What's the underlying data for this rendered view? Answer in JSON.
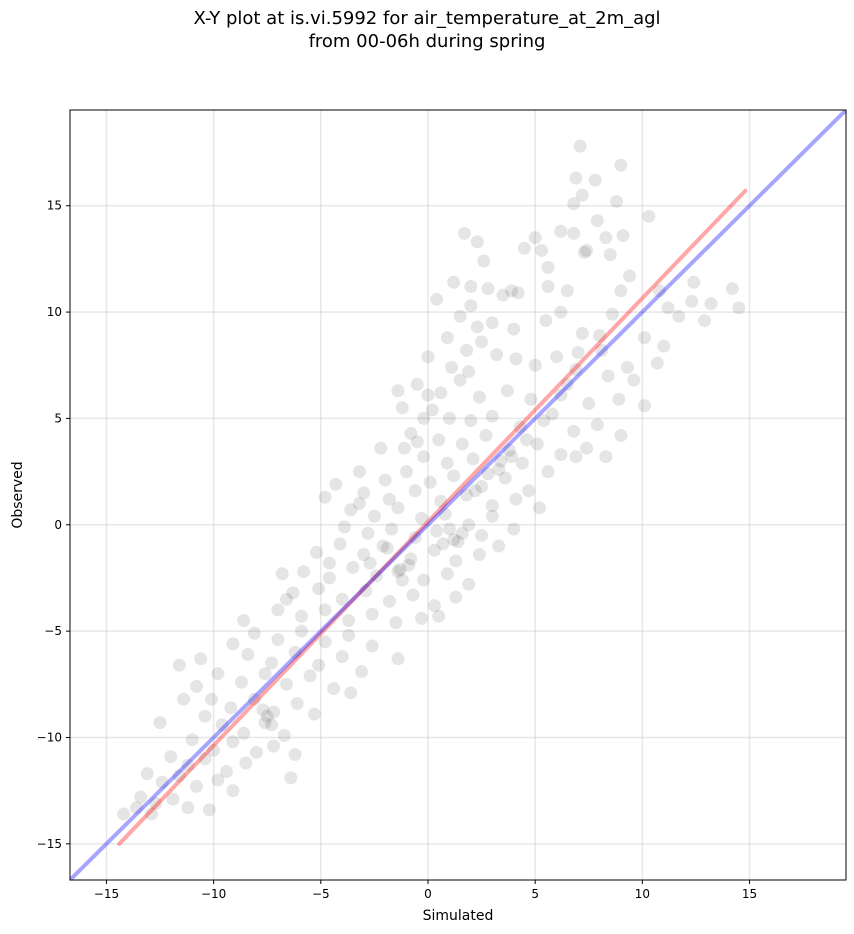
{
  "title": {
    "line1": "X-Y plot at is.vi.5992 for air_temperature_at_2m_agl",
    "line2": "from 00-06h during spring"
  },
  "chart_data": {
    "type": "scatter",
    "xlabel": "Simulated",
    "ylabel": "Observed",
    "xlim": [
      -16.7,
      19.5
    ],
    "ylim": [
      -16.7,
      19.5
    ],
    "xticks": [
      -15,
      -10,
      -5,
      0,
      5,
      10,
      15
    ],
    "yticks": [
      -15,
      -10,
      -5,
      0,
      5,
      10,
      15
    ],
    "xtick_labels": [
      "−15",
      "−10",
      "−5",
      "0",
      "5",
      "10",
      "15"
    ],
    "ytick_labels": [
      "−15",
      "−10",
      "−5",
      "0",
      "5",
      "10",
      "15"
    ],
    "grid": true,
    "point_color": "#000000",
    "point_opacity": 0.1,
    "fit_line": {
      "color": "#ff0000",
      "opacity": 0.35,
      "x": [
        -14.4,
        14.8
      ],
      "y": [
        -15.0,
        15.7
      ]
    },
    "identity_line": {
      "color": "#0000ff",
      "opacity": 0.35,
      "x": [
        -16.7,
        19.5
      ],
      "y": [
        -16.7,
        19.5
      ]
    },
    "points": [
      {
        "x": 7.1,
        "y": 17.8
      },
      {
        "x": 9.0,
        "y": 16.9
      },
      {
        "x": 6.9,
        "y": 16.3
      },
      {
        "x": 7.8,
        "y": 16.2
      },
      {
        "x": 7.2,
        "y": 15.5
      },
      {
        "x": 6.8,
        "y": 15.1
      },
      {
        "x": 8.8,
        "y": 15.2
      },
      {
        "x": 10.3,
        "y": 14.5
      },
      {
        "x": 7.9,
        "y": 14.3
      },
      {
        "x": 1.7,
        "y": 13.7
      },
      {
        "x": 5.0,
        "y": 13.5
      },
      {
        "x": 2.3,
        "y": 13.3
      },
      {
        "x": 6.2,
        "y": 13.8
      },
      {
        "x": 6.8,
        "y": 13.7
      },
      {
        "x": 9.1,
        "y": 13.6
      },
      {
        "x": 8.3,
        "y": 13.5
      },
      {
        "x": 4.5,
        "y": 13.0
      },
      {
        "x": 5.3,
        "y": 12.9
      },
      {
        "x": 7.3,
        "y": 12.8
      },
      {
        "x": 8.5,
        "y": 12.7
      },
      {
        "x": 2.0,
        "y": 11.2
      },
      {
        "x": 1.2,
        "y": 11.4
      },
      {
        "x": 2.8,
        "y": 11.1
      },
      {
        "x": 3.5,
        "y": 10.8
      },
      {
        "x": 4.2,
        "y": 10.9
      },
      {
        "x": 5.6,
        "y": 11.2
      },
      {
        "x": 6.5,
        "y": 11.0
      },
      {
        "x": 9.0,
        "y": 11.0
      },
      {
        "x": 10.8,
        "y": 11.0
      },
      {
        "x": 12.4,
        "y": 11.4
      },
      {
        "x": 14.2,
        "y": 11.1
      },
      {
        "x": 14.5,
        "y": 10.2
      },
      {
        "x": 13.2,
        "y": 10.4
      },
      {
        "x": 12.3,
        "y": 10.5
      },
      {
        "x": 11.2,
        "y": 10.2
      },
      {
        "x": 12.9,
        "y": 9.6
      },
      {
        "x": 0.4,
        "y": 10.6
      },
      {
        "x": 2.0,
        "y": 10.3
      },
      {
        "x": 1.5,
        "y": 9.8
      },
      {
        "x": 3.0,
        "y": 9.5
      },
      {
        "x": 4.0,
        "y": 9.2
      },
      {
        "x": 5.5,
        "y": 9.6
      },
      {
        "x": 7.2,
        "y": 9.0
      },
      {
        "x": 8.0,
        "y": 8.9
      },
      {
        "x": 10.1,
        "y": 8.8
      },
      {
        "x": 11.0,
        "y": 8.4
      },
      {
        "x": 10.7,
        "y": 7.6
      },
      {
        "x": 9.3,
        "y": 7.4
      },
      {
        "x": 0.9,
        "y": 8.8
      },
      {
        "x": 1.8,
        "y": 8.2
      },
      {
        "x": 2.5,
        "y": 8.6
      },
      {
        "x": 3.2,
        "y": 8.0
      },
      {
        "x": 4.1,
        "y": 7.8
      },
      {
        "x": 5.0,
        "y": 7.5
      },
      {
        "x": 6.0,
        "y": 7.9
      },
      {
        "x": 6.9,
        "y": 7.3
      },
      {
        "x": 8.4,
        "y": 7.0
      },
      {
        "x": 9.6,
        "y": 6.8
      },
      {
        "x": 0.0,
        "y": 7.9
      },
      {
        "x": 1.1,
        "y": 7.4
      },
      {
        "x": -0.5,
        "y": 6.6
      },
      {
        "x": 0.6,
        "y": 6.2
      },
      {
        "x": 1.5,
        "y": 6.8
      },
      {
        "x": 2.4,
        "y": 6.0
      },
      {
        "x": 3.7,
        "y": 6.3
      },
      {
        "x": 4.8,
        "y": 5.9
      },
      {
        "x": 6.2,
        "y": 6.1
      },
      {
        "x": 7.5,
        "y": 5.7
      },
      {
        "x": 8.9,
        "y": 5.9
      },
      {
        "x": 10.1,
        "y": 5.6
      },
      {
        "x": -1.4,
        "y": 6.3
      },
      {
        "x": -1.2,
        "y": 5.5
      },
      {
        "x": 0.2,
        "y": 5.4
      },
      {
        "x": 1.0,
        "y": 5.0
      },
      {
        "x": 2.0,
        "y": 4.9
      },
      {
        "x": 3.0,
        "y": 5.1
      },
      {
        "x": 4.3,
        "y": 4.6
      },
      {
        "x": 5.4,
        "y": 4.9
      },
      {
        "x": 6.8,
        "y": 4.4
      },
      {
        "x": 7.9,
        "y": 4.7
      },
      {
        "x": 9.0,
        "y": 4.2
      },
      {
        "x": -0.8,
        "y": 4.3
      },
      {
        "x": 0.5,
        "y": 4.0
      },
      {
        "x": 1.6,
        "y": 3.8
      },
      {
        "x": 2.7,
        "y": 4.2
      },
      {
        "x": 3.8,
        "y": 3.5
      },
      {
        "x": 5.1,
        "y": 3.8
      },
      {
        "x": 6.2,
        "y": 3.3
      },
      {
        "x": 7.4,
        "y": 3.6
      },
      {
        "x": 8.3,
        "y": 3.2
      },
      {
        "x": -2.2,
        "y": 3.6
      },
      {
        "x": -1.1,
        "y": 3.6
      },
      {
        "x": -0.2,
        "y": 3.2
      },
      {
        "x": 0.9,
        "y": 2.9
      },
      {
        "x": 2.1,
        "y": 3.1
      },
      {
        "x": 3.3,
        "y": 2.6
      },
      {
        "x": 4.4,
        "y": 2.9
      },
      {
        "x": 5.6,
        "y": 2.5
      },
      {
        "x": 6.9,
        "y": 3.2
      },
      {
        "x": -3.2,
        "y": 2.5
      },
      {
        "x": -2.0,
        "y": 2.1
      },
      {
        "x": -1.0,
        "y": 2.5
      },
      {
        "x": 0.1,
        "y": 2.0
      },
      {
        "x": 1.2,
        "y": 2.3
      },
      {
        "x": 2.5,
        "y": 1.8
      },
      {
        "x": 3.6,
        "y": 2.2
      },
      {
        "x": 4.7,
        "y": 1.6
      },
      {
        "x": -4.3,
        "y": 1.9
      },
      {
        "x": -3.0,
        "y": 1.5
      },
      {
        "x": -1.8,
        "y": 1.2
      },
      {
        "x": -0.6,
        "y": 1.6
      },
      {
        "x": 0.6,
        "y": 1.1
      },
      {
        "x": 1.8,
        "y": 1.4
      },
      {
        "x": 3.0,
        "y": 0.9
      },
      {
        "x": 4.1,
        "y": 1.2
      },
      {
        "x": 5.2,
        "y": 0.8
      },
      {
        "x": -4.8,
        "y": 1.3
      },
      {
        "x": -3.6,
        "y": 0.7
      },
      {
        "x": -2.5,
        "y": 0.4
      },
      {
        "x": -1.4,
        "y": 0.8
      },
      {
        "x": -0.3,
        "y": 0.3
      },
      {
        "x": 0.8,
        "y": 0.5
      },
      {
        "x": 1.9,
        "y": 0.0
      },
      {
        "x": 3.0,
        "y": 0.4
      },
      {
        "x": 4.0,
        "y": -0.2
      },
      {
        "x": -3.9,
        "y": -0.1
      },
      {
        "x": -2.8,
        "y": -0.4
      },
      {
        "x": -1.7,
        "y": -0.2
      },
      {
        "x": -0.6,
        "y": -0.6
      },
      {
        "x": 0.4,
        "y": -0.3
      },
      {
        "x": 1.4,
        "y": -0.8
      },
      {
        "x": 2.5,
        "y": -0.5
      },
      {
        "x": 3.3,
        "y": -1.0
      },
      {
        "x": -5.2,
        "y": -1.3
      },
      {
        "x": -4.1,
        "y": -0.9
      },
      {
        "x": -3.0,
        "y": -1.4
      },
      {
        "x": -1.9,
        "y": -1.1
      },
      {
        "x": -0.8,
        "y": -1.6
      },
      {
        "x": 0.3,
        "y": -1.2
      },
      {
        "x": 1.3,
        "y": -1.7
      },
      {
        "x": 2.4,
        "y": -1.4
      },
      {
        "x": -5.8,
        "y": -2.2
      },
      {
        "x": -4.6,
        "y": -2.5
      },
      {
        "x": -3.5,
        "y": -2.0
      },
      {
        "x": -2.4,
        "y": -2.4
      },
      {
        "x": -1.3,
        "y": -2.1
      },
      {
        "x": -0.2,
        "y": -2.6
      },
      {
        "x": 0.9,
        "y": -2.3
      },
      {
        "x": 1.9,
        "y": -2.8
      },
      {
        "x": -6.3,
        "y": -3.2
      },
      {
        "x": -5.1,
        "y": -3.0
      },
      {
        "x": -4.0,
        "y": -3.5
      },
      {
        "x": -2.9,
        "y": -3.1
      },
      {
        "x": -1.8,
        "y": -3.6
      },
      {
        "x": -0.7,
        "y": -3.3
      },
      {
        "x": 0.3,
        "y": -3.8
      },
      {
        "x": 1.3,
        "y": -3.4
      },
      {
        "x": -7.0,
        "y": -4.0
      },
      {
        "x": -5.9,
        "y": -4.3
      },
      {
        "x": -4.8,
        "y": -4.0
      },
      {
        "x": -3.7,
        "y": -4.5
      },
      {
        "x": -2.6,
        "y": -4.2
      },
      {
        "x": -1.5,
        "y": -4.6
      },
      {
        "x": -0.3,
        "y": -4.4
      },
      {
        "x": 0.5,
        "y": -4.3
      },
      {
        "x": -8.1,
        "y": -5.1
      },
      {
        "x": -7.0,
        "y": -5.4
      },
      {
        "x": -5.9,
        "y": -5.0
      },
      {
        "x": -4.8,
        "y": -5.5
      },
      {
        "x": -3.7,
        "y": -5.2
      },
      {
        "x": -2.6,
        "y": -5.7
      },
      {
        "x": -1.4,
        "y": -6.3
      },
      {
        "x": -9.1,
        "y": -5.6
      },
      {
        "x": -8.4,
        "y": -6.1
      },
      {
        "x": -7.3,
        "y": -6.5
      },
      {
        "x": -6.2,
        "y": -6.0
      },
      {
        "x": -5.1,
        "y": -6.6
      },
      {
        "x": -4.0,
        "y": -6.2
      },
      {
        "x": -3.1,
        "y": -6.9
      },
      {
        "x": -10.6,
        "y": -6.3
      },
      {
        "x": -9.8,
        "y": -7.0
      },
      {
        "x": -8.7,
        "y": -7.4
      },
      {
        "x": -7.6,
        "y": -7.0
      },
      {
        "x": -6.6,
        "y": -7.5
      },
      {
        "x": -5.5,
        "y": -7.1
      },
      {
        "x": -4.4,
        "y": -7.7
      },
      {
        "x": -3.6,
        "y": -7.9
      },
      {
        "x": -11.6,
        "y": -6.6
      },
      {
        "x": -10.8,
        "y": -7.6
      },
      {
        "x": -10.1,
        "y": -8.2
      },
      {
        "x": -9.2,
        "y": -8.6
      },
      {
        "x": -8.1,
        "y": -8.2
      },
      {
        "x": -7.2,
        "y": -8.8
      },
      {
        "x": -6.1,
        "y": -8.4
      },
      {
        "x": -5.3,
        "y": -8.9
      },
      {
        "x": -11.4,
        "y": -8.2
      },
      {
        "x": -10.4,
        "y": -9.0
      },
      {
        "x": -9.6,
        "y": -9.4
      },
      {
        "x": -8.6,
        "y": -9.8
      },
      {
        "x": -7.6,
        "y": -9.3
      },
      {
        "x": -6.7,
        "y": -9.9
      },
      {
        "x": -12.5,
        "y": -9.3
      },
      {
        "x": -11.0,
        "y": -10.1
      },
      {
        "x": -10.0,
        "y": -10.6
      },
      {
        "x": -9.1,
        "y": -10.2
      },
      {
        "x": -8.0,
        "y": -10.7
      },
      {
        "x": -7.2,
        "y": -10.4
      },
      {
        "x": -6.2,
        "y": -10.8
      },
      {
        "x": -12.0,
        "y": -10.9
      },
      {
        "x": -11.2,
        "y": -11.3
      },
      {
        "x": -10.4,
        "y": -11.0
      },
      {
        "x": -9.4,
        "y": -11.6
      },
      {
        "x": -8.5,
        "y": -11.2
      },
      {
        "x": -6.4,
        "y": -11.9
      },
      {
        "x": -13.1,
        "y": -11.7
      },
      {
        "x": -12.4,
        "y": -12.1
      },
      {
        "x": -11.6,
        "y": -11.8
      },
      {
        "x": -10.8,
        "y": -12.3
      },
      {
        "x": -9.8,
        "y": -12.0
      },
      {
        "x": -9.1,
        "y": -12.5
      },
      {
        "x": -13.4,
        "y": -12.8
      },
      {
        "x": -12.7,
        "y": -13.1
      },
      {
        "x": -11.9,
        "y": -12.9
      },
      {
        "x": -11.2,
        "y": -13.3
      },
      {
        "x": -10.2,
        "y": -13.4
      },
      {
        "x": -14.2,
        "y": -13.6
      },
      {
        "x": -13.6,
        "y": -13.3
      },
      {
        "x": -12.9,
        "y": -13.6
      },
      {
        "x": 1.0,
        "y": -0.2
      },
      {
        "x": 1.2,
        "y": -0.7
      },
      {
        "x": 0.7,
        "y": -0.9
      },
      {
        "x": 1.6,
        "y": -0.4
      },
      {
        "x": -1.4,
        "y": -2.2
      },
      {
        "x": -1.2,
        "y": -2.6
      },
      {
        "x": -0.9,
        "y": -1.9
      },
      {
        "x": -7.5,
        "y": -9.0
      },
      {
        "x": -7.3,
        "y": -9.4
      },
      {
        "x": -7.7,
        "y": -8.7
      },
      {
        "x": 2.8,
        "y": 2.4
      },
      {
        "x": 3.4,
        "y": 3.0
      },
      {
        "x": 2.2,
        "y": 1.6
      },
      {
        "x": 4.6,
        "y": 4.0
      },
      {
        "x": 3.9,
        "y": 3.2
      },
      {
        "x": -2.1,
        "y": -1.0
      },
      {
        "x": -2.7,
        "y": -1.8
      },
      {
        "x": 5.8,
        "y": 5.2
      },
      {
        "x": 6.5,
        "y": 6.6
      },
      {
        "x": 7.0,
        "y": 8.1
      },
      {
        "x": -6.8,
        "y": -2.3
      },
      {
        "x": -6.6,
        "y": -3.5
      },
      {
        "x": -8.6,
        "y": -4.5
      },
      {
        "x": -3.2,
        "y": 1.0
      },
      {
        "x": -4.6,
        "y": -1.8
      },
      {
        "x": 0.0,
        "y": 6.1
      },
      {
        "x": 3.9,
        "y": 11.0
      },
      {
        "x": 9.4,
        "y": 11.7
      },
      {
        "x": 5.6,
        "y": 12.1
      },
      {
        "x": 7.4,
        "y": 12.9
      },
      {
        "x": 8.1,
        "y": 8.2
      },
      {
        "x": 11.7,
        "y": 9.8
      },
      {
        "x": 6.2,
        "y": 10.0
      },
      {
        "x": 2.6,
        "y": 12.4
      },
      {
        "x": -0.2,
        "y": 5.0
      },
      {
        "x": -0.5,
        "y": 3.9
      },
      {
        "x": 1.9,
        "y": 7.2
      },
      {
        "x": 2.3,
        "y": 9.3
      },
      {
        "x": 8.6,
        "y": 9.9
      }
    ]
  }
}
